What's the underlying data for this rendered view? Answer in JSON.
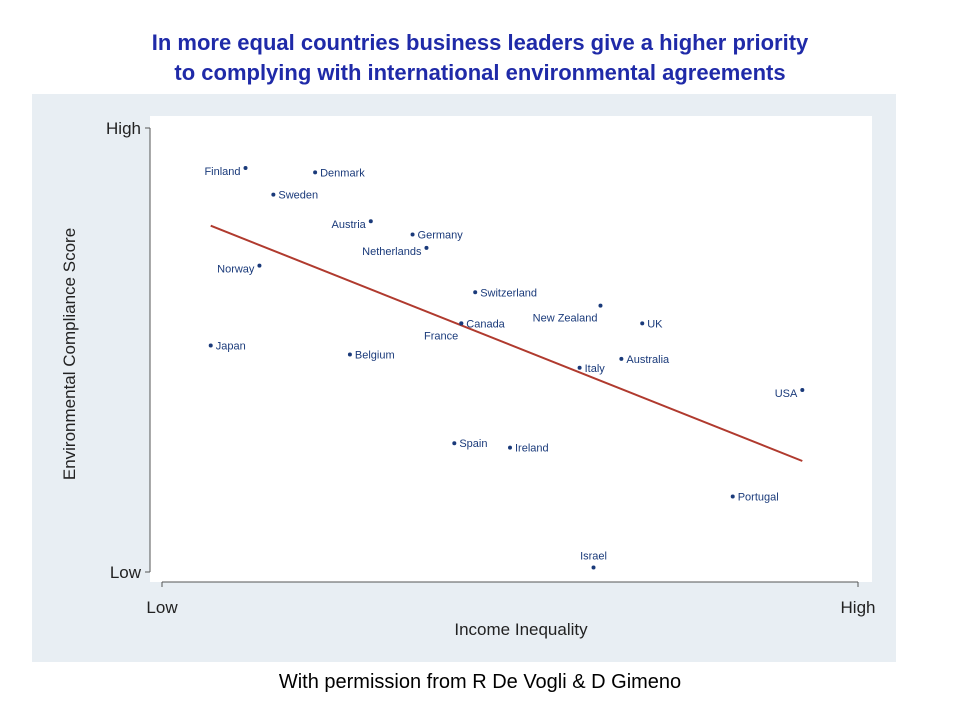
{
  "title": {
    "line1": "In more equal countries business leaders give a higher priority",
    "line2": "to complying with international environmental agreements"
  },
  "caption": "With permission from R De Vogli & D Gimeno",
  "colors": {
    "title": "#1f2aa8",
    "panel_bg": "#e8eef3",
    "plot_bg": "#ffffff",
    "points": "#1a3a7a",
    "fit_line": "#b03a2e"
  },
  "chart_data": {
    "type": "scatter",
    "xlabel": "Income Inequality",
    "ylabel": "Environmental Compliance Score",
    "x_ticks": [
      "Low",
      "High"
    ],
    "y_ticks": [
      "Low",
      "High"
    ],
    "xlim": [
      0,
      100
    ],
    "ylim": [
      0,
      100
    ],
    "grid": false,
    "points": [
      {
        "label": "Finland",
        "x": 12,
        "y": 91
      },
      {
        "label": "Denmark",
        "x": 22,
        "y": 90
      },
      {
        "label": "Sweden",
        "x": 16,
        "y": 85
      },
      {
        "label": "Austria",
        "x": 30,
        "y": 79
      },
      {
        "label": "Germany",
        "x": 36,
        "y": 76
      },
      {
        "label": "Netherlands",
        "x": 38,
        "y": 73
      },
      {
        "label": "Norway",
        "x": 14,
        "y": 69
      },
      {
        "label": "Switzerland",
        "x": 45,
        "y": 63
      },
      {
        "label": "New Zealand",
        "x": 63,
        "y": 60
      },
      {
        "label": "Canada",
        "x": 43,
        "y": 56
      },
      {
        "label": "France",
        "x": 43,
        "y": 56
      },
      {
        "label": "UK",
        "x": 69,
        "y": 56
      },
      {
        "label": "Japan",
        "x": 7,
        "y": 51
      },
      {
        "label": "Belgium",
        "x": 27,
        "y": 49
      },
      {
        "label": "Australia",
        "x": 66,
        "y": 48
      },
      {
        "label": "Italy",
        "x": 60,
        "y": 46
      },
      {
        "label": "USA",
        "x": 92,
        "y": 41
      },
      {
        "label": "Spain",
        "x": 42,
        "y": 29
      },
      {
        "label": "Ireland",
        "x": 50,
        "y": 28
      },
      {
        "label": "Portugal",
        "x": 82,
        "y": 17
      },
      {
        "label": "Israel",
        "x": 62,
        "y": 1
      }
    ],
    "fit_line": {
      "x": [
        7,
        92
      ],
      "y": [
        78,
        25
      ]
    }
  }
}
